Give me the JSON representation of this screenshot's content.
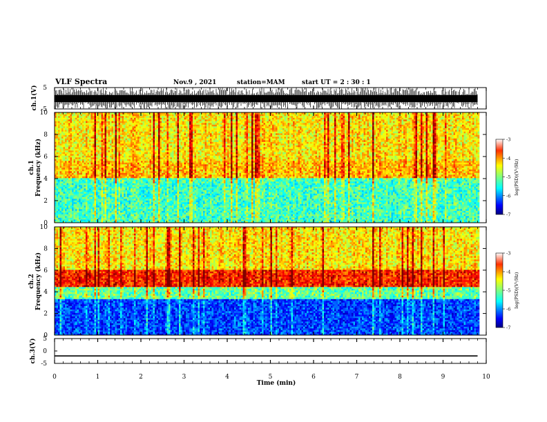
{
  "header": {
    "title": "VLF Spectra",
    "date": "Nov.9 , 2021",
    "station": "station=MAM",
    "start": "start UT = 2 : 30 : 1"
  },
  "chart_data": [
    {
      "type": "line",
      "panel": "ch1-waveform",
      "ylabel": "ch.1(V)",
      "ylim": [
        -5,
        5
      ],
      "yticks": [
        5,
        -5
      ],
      "xlim": [
        0,
        10
      ],
      "description_values": "dense impulsive waveform spanning most of the ±5 V range"
    },
    {
      "type": "heatmap",
      "panel": "ch1-spectrogram",
      "ylabel": "ch.1\nFrequency (kHz)",
      "ylabel_line1": "ch.1",
      "ylabel_line2": "Frequency (kHz)",
      "ylim": [
        0,
        10
      ],
      "yticks": [
        0,
        2,
        4,
        6,
        8,
        10
      ],
      "xlim": [
        0,
        9.8
      ],
      "colorbar": {
        "ticks": [
          -3,
          -4,
          -5,
          -6,
          -7
        ],
        "label": "log(PSD)(V²/Hz)",
        "range": [
          -7,
          -3
        ]
      },
      "bands": [
        {
          "f_from": 0,
          "f_to": 4,
          "log_psd": -5.3
        },
        {
          "f_from": 4,
          "f_to": 5.5,
          "log_psd": -4.3
        },
        {
          "f_from": 5.5,
          "f_to": 10,
          "log_psd": -4.5
        }
      ]
    },
    {
      "type": "heatmap",
      "panel": "ch2-spectrogram",
      "ylabel": "ch.2\nFrequency (kHz)",
      "ylabel_line1": "ch.2",
      "ylabel_line2": "Frequency (kHz)",
      "ylim": [
        0,
        10
      ],
      "yticks": [
        0,
        2,
        4,
        6,
        8,
        10
      ],
      "xlim": [
        0,
        9.8
      ],
      "colorbar": {
        "ticks": [
          -3,
          -4,
          -5,
          -6,
          -7
        ],
        "label": "log(PSD)(V²/Hz)",
        "range": [
          -7,
          -3
        ]
      },
      "bands": [
        {
          "f_from": 0,
          "f_to": 3.3,
          "log_psd": -6.3
        },
        {
          "f_from": 3.3,
          "f_to": 4.3,
          "log_psd": -5.2
        },
        {
          "f_from": 4.3,
          "f_to": 6,
          "log_psd": -3.7
        },
        {
          "f_from": 6,
          "f_to": 10,
          "log_psd": -4.5
        }
      ]
    },
    {
      "type": "line",
      "panel": "ch3-waveform",
      "ylabel": "ch.3(V)",
      "ylim": [
        -5,
        5
      ],
      "yticks": [
        5,
        0,
        -5
      ],
      "ytick_labels": [
        "5",
        "0",
        "-5"
      ],
      "xlim": [
        0,
        10
      ],
      "x": [
        0,
        9.8
      ],
      "y": [
        -2,
        -2
      ]
    }
  ],
  "xaxis": {
    "label": "Time (min)",
    "ticks": [
      0,
      1,
      2,
      3,
      4,
      5,
      6,
      7,
      8,
      9,
      10
    ],
    "tick_labels": [
      "0",
      "1",
      "2",
      "3",
      "4",
      "5",
      "6",
      "7",
      "8",
      "9",
      "10"
    ],
    "range": [
      0,
      10
    ]
  },
  "colors": {
    "jet": [
      "#00007f",
      "#0000ff",
      "#007fff",
      "#00ffff",
      "#7fff7f",
      "#ffff00",
      "#ff7f00",
      "#ff0000",
      "#7f0000"
    ],
    "axes": "#000000"
  }
}
